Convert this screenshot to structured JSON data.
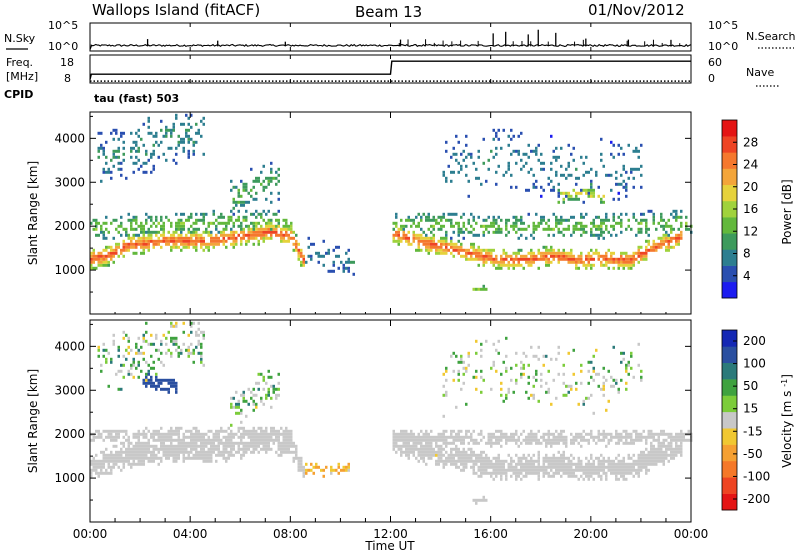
{
  "header": {
    "station": "Wallops Island (fitACF)",
    "beam": "Beam 13",
    "date": "01/Nov/2012"
  },
  "noise_panel": {
    "left_label": "N.Sky",
    "right_label": "N.Search",
    "left_ticks": [
      "10^5",
      "10^0"
    ],
    "right_ticks": [
      "10^5",
      "10^0"
    ]
  },
  "freq_panel": {
    "left_label_line1": "Freq.",
    "left_label_line2": "[MHz]",
    "left_ticks": [
      "18",
      "8"
    ],
    "right_label": "Nave",
    "right_ticks": [
      "60",
      "0"
    ]
  },
  "cpid": {
    "label": "CPID",
    "mode": "tau (fast) 503"
  },
  "time_axis": {
    "label": "Time UT",
    "ticks": [
      "00:00",
      "04:00",
      "08:00",
      "12:00",
      "16:00",
      "20:00",
      "00:00"
    ]
  },
  "range_axis": {
    "label": "Slant Range [km]",
    "ticks": [
      "1000",
      "2000",
      "3000",
      "4000"
    ],
    "range": [
      0,
      4600
    ]
  },
  "power_scale": {
    "label": "Power [dB]",
    "ticks": [
      "4",
      "8",
      "12",
      "16",
      "20",
      "24",
      "28"
    ],
    "colors": [
      "#1c1cf0",
      "#2a4fb0",
      "#2d7e90",
      "#3d9a5c",
      "#62b83c",
      "#a0d23c",
      "#e6d23c",
      "#f3a53a",
      "#f5782e",
      "#ee4424",
      "#e41414"
    ]
  },
  "velocity_scale": {
    "label": "Velocity [m s^-1]",
    "ticks": [
      "200",
      "100",
      "50",
      "15",
      "-15",
      "-50",
      "-100",
      "-200"
    ],
    "colors": [
      "#1428b4",
      "#2a4fa0",
      "#2b7a7a",
      "#3fa23f",
      "#7ccc3a",
      "#c8c8c8",
      "#f0c832",
      "#f5a032",
      "#f57828",
      "#ee4422",
      "#e41414"
    ]
  },
  "chart_data": [
    {
      "type": "line",
      "name": "noise",
      "x_range": [
        0,
        24
      ],
      "ylim": [
        0,
        5
      ],
      "sky_baseline": 0.7,
      "search_spikes": [
        [
          2.3,
          2.1
        ],
        [
          5.1,
          1.8
        ],
        [
          7.8,
          1.6
        ],
        [
          12.4,
          2.0
        ],
        [
          16.1,
          3.2
        ],
        [
          16.6,
          3.5
        ],
        [
          17.5,
          3.0
        ],
        [
          17.9,
          3.9
        ],
        [
          18.6,
          3.3
        ],
        [
          19.8,
          2.2
        ],
        [
          21.5,
          2.0
        ],
        [
          23.2,
          1.9
        ]
      ]
    },
    {
      "type": "line",
      "name": "frequency",
      "x_range": [
        0,
        24
      ],
      "ylim": [
        8,
        18
      ],
      "x": [
        0,
        0.05,
        12,
        12.05,
        24
      ],
      "y": [
        9.0,
        11.0,
        11.0,
        16.0,
        16.0
      ],
      "nave": [
        [
          0,
          2.0
        ],
        [
          24,
          2.0
        ]
      ],
      "nave_ylim": [
        0,
        60
      ]
    },
    {
      "type": "heatmap",
      "name": "power",
      "x_range": [
        0,
        24
      ],
      "y_range": [
        0,
        4600
      ],
      "value_range": [
        0,
        32
      ],
      "bands": [
        {
          "x": [
            0.0,
            0.6,
            1.5,
            3.0,
            4.5,
            5.5,
            6.5,
            7.2,
            8.0,
            8.5
          ],
          "y": [
            1280,
            1350,
            1600,
            1700,
            1700,
            1750,
            1850,
            1900,
            1800,
            1250
          ],
          "width": 260,
          "peak": 27,
          "density": 0.85
        },
        {
          "x": [
            12.0,
            13.0,
            14.5,
            16.0,
            17.0,
            18.5,
            19.5,
            20.5,
            21.5,
            22.5,
            23.6
          ],
          "y": [
            1900,
            1700,
            1500,
            1300,
            1250,
            1350,
            1250,
            1300,
            1250,
            1550,
            1800
          ],
          "width": 250,
          "peak": 27,
          "density": 0.85
        },
        {
          "x": [
            0.0,
            2.0,
            4.0,
            6.0,
            8.0
          ],
          "y": [
            2000,
            2050,
            2100,
            2150,
            2100
          ],
          "width": 300,
          "peak": 14,
          "density": 0.45
        },
        {
          "x": [
            12.0,
            15.0,
            18.0,
            21.0,
            24.0
          ],
          "y": [
            2100,
            2050,
            2000,
            2050,
            2100
          ],
          "width": 320,
          "peak": 14,
          "density": 0.45
        },
        {
          "x": [
            0.2,
            1.5,
            3.0,
            4.5
          ],
          "y": [
            3600,
            3700,
            4100,
            4200
          ],
          "width": 700,
          "peak": 9,
          "density": 0.28
        },
        {
          "x": [
            5.5,
            6.5,
            7.5
          ],
          "y": [
            2600,
            2900,
            3100
          ],
          "width": 500,
          "peak": 12,
          "density": 0.3
        },
        {
          "x": [
            8.5,
            9.5,
            10.5
          ],
          "y": [
            1500,
            1300,
            1200
          ],
          "width": 400,
          "peak": 8,
          "density": 0.25
        },
        {
          "x": [
            14.0,
            16.0,
            18.0,
            20.0,
            22.0
          ],
          "y": [
            3200,
            3600,
            3400,
            3200,
            3500
          ],
          "width": 800,
          "peak": 8,
          "density": 0.16
        },
        {
          "x": [
            18.5,
            19.5,
            20.5
          ],
          "y": [
            2700,
            2800,
            2700
          ],
          "width": 200,
          "peak": 19,
          "density": 0.5
        },
        {
          "x": [
            15.2,
            15.8
          ],
          "y": [
            600,
            620
          ],
          "width": 90,
          "peak": 16,
          "density": 0.9
        }
      ]
    },
    {
      "type": "heatmap",
      "name": "velocity",
      "x_range": [
        0,
        24
      ],
      "y_range": [
        0,
        4600
      ],
      "value_range": [
        -250,
        250
      ],
      "bands": [
        {
          "x": [
            0.0,
            0.6,
            1.5,
            3.0,
            4.5,
            5.5,
            6.5,
            7.2,
            8.0,
            8.5
          ],
          "y": [
            1280,
            1350,
            1600,
            1700,
            1700,
            1750,
            1850,
            1900,
            1800,
            1250
          ],
          "width": 350,
          "center": 0,
          "spread": 12,
          "density": 0.9
        },
        {
          "x": [
            12.0,
            13.0,
            14.5,
            16.0,
            17.0,
            18.5,
            19.5,
            20.5,
            21.5,
            22.5,
            23.6
          ],
          "y": [
            1900,
            1700,
            1500,
            1300,
            1250,
            1350,
            1250,
            1300,
            1250,
            1550,
            1800
          ],
          "width": 330,
          "center": 0,
          "spread": 12,
          "density": 0.9
        },
        {
          "x": [
            0.0,
            4.0,
            8.0
          ],
          "y": [
            2000,
            2050,
            2050
          ],
          "width": 150,
          "center": 0,
          "spread": 8,
          "density": 0.8
        },
        {
          "x": [
            12.0,
            18.0,
            24.0
          ],
          "y": [
            1950,
            1950,
            1950
          ],
          "width": 200,
          "center": 0,
          "spread": 8,
          "density": 0.8
        },
        {
          "x": [
            0.2,
            1.5,
            3.0,
            4.5
          ],
          "y": [
            3600,
            3700,
            4100,
            4200
          ],
          "width": 700,
          "center": 20,
          "spread": 60,
          "density": 0.28
        },
        {
          "x": [
            2.0,
            2.8,
            3.4
          ],
          "y": [
            3300,
            3200,
            3100
          ],
          "width": 180,
          "center": 150,
          "spread": 50,
          "density": 0.6
        },
        {
          "x": [
            5.5,
            6.5,
            7.5
          ],
          "y": [
            2600,
            2900,
            3100
          ],
          "width": 500,
          "center": 20,
          "spread": 40,
          "density": 0.3
        },
        {
          "x": [
            8.3,
            9.3,
            10.3
          ],
          "y": [
            1250,
            1200,
            1300
          ],
          "width": 150,
          "center": -60,
          "spread": 50,
          "density": 0.6
        },
        {
          "x": [
            14.0,
            16.0,
            18.0,
            20.0,
            22.0
          ],
          "y": [
            3200,
            3600,
            3400,
            3200,
            3500
          ],
          "width": 800,
          "center": 10,
          "spread": 50,
          "density": 0.16
        },
        {
          "x": [
            15.2,
            15.8
          ],
          "y": [
            500,
            520
          ],
          "width": 90,
          "center": 0,
          "spread": 6,
          "density": 0.9
        }
      ]
    }
  ]
}
